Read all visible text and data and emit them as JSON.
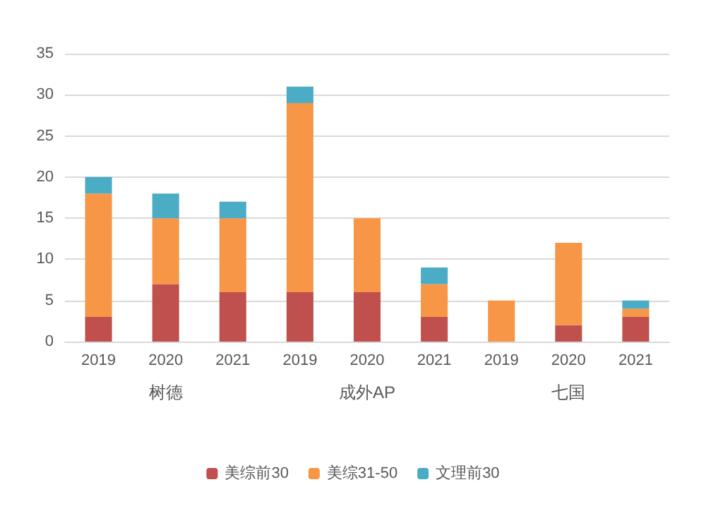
{
  "chart_data": {
    "type": "bar",
    "stacked": true,
    "categories": [
      "2019",
      "2020",
      "2021",
      "2019",
      "2020",
      "2021",
      "2019",
      "2020",
      "2021"
    ],
    "series": [
      {
        "name": "美综前30",
        "color": "#c0504d",
        "values": [
          3,
          7,
          6,
          6,
          6,
          3,
          0,
          2,
          3
        ]
      },
      {
        "name": "美综31-50",
        "color": "#f79646",
        "values": [
          15,
          8,
          9,
          23,
          9,
          4,
          5,
          10,
          1
        ]
      },
      {
        "name": "文理前30",
        "color": "#4bacc6",
        "values": [
          2,
          3,
          2,
          2,
          0,
          2,
          0,
          0,
          1
        ]
      }
    ],
    "annotations": [
      "树德",
      "成外AP",
      "七国"
    ],
    "ylim": [
      0,
      35
    ],
    "yticks": [
      0,
      5,
      10,
      15,
      20,
      25,
      30,
      35
    ],
    "grid": "y",
    "legend": "bottom"
  }
}
